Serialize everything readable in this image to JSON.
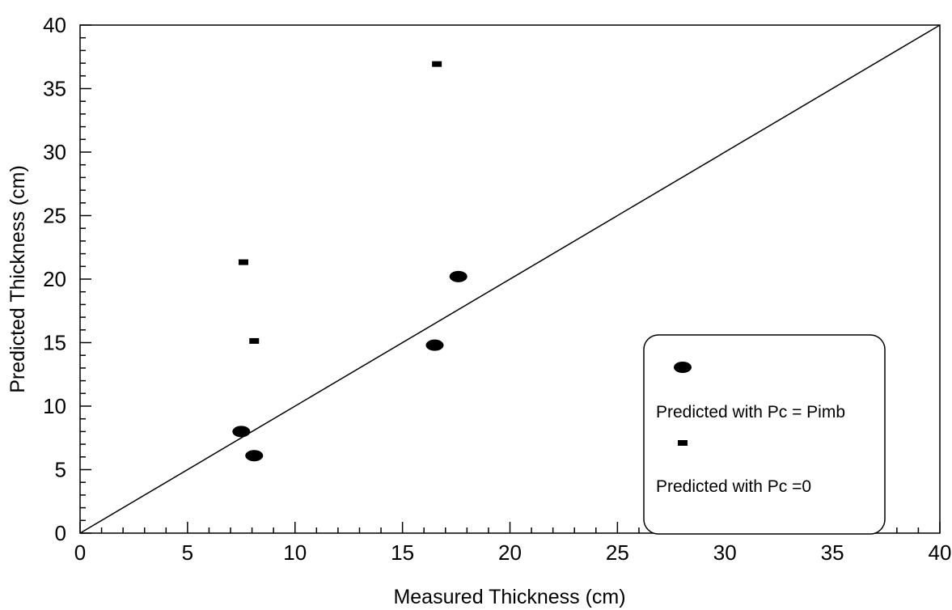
{
  "chart_data": {
    "type": "scatter",
    "title": "",
    "xlabel": "Measured Thickness (cm)",
    "ylabel": "Predicted Thickness (cm)",
    "xlim": [
      0,
      40
    ],
    "ylim": [
      0,
      40
    ],
    "x_ticks": [
      0,
      5,
      10,
      15,
      20,
      25,
      30,
      35,
      40
    ],
    "y_ticks": [
      0,
      5,
      10,
      15,
      20,
      25,
      30,
      35,
      40
    ],
    "grid": false,
    "legend_position": "bottom-right",
    "series": [
      {
        "name": "Predicted with Pc = Pimb",
        "marker": "ellipse",
        "points": [
          {
            "x": 7.5,
            "y": 8.0
          },
          {
            "x": 8.1,
            "y": 6.1
          },
          {
            "x": 16.5,
            "y": 14.8
          },
          {
            "x": 17.6,
            "y": 20.2
          }
        ]
      },
      {
        "name": "Predicted with Pc =0",
        "marker": "square",
        "points": [
          {
            "x": 7.6,
            "y": 21.3
          },
          {
            "x": 8.1,
            "y": 15.1
          },
          {
            "x": 16.6,
            "y": 36.9
          }
        ]
      }
    ],
    "reference_line": {
      "x": [
        0,
        40
      ],
      "y": [
        0,
        40
      ]
    }
  }
}
